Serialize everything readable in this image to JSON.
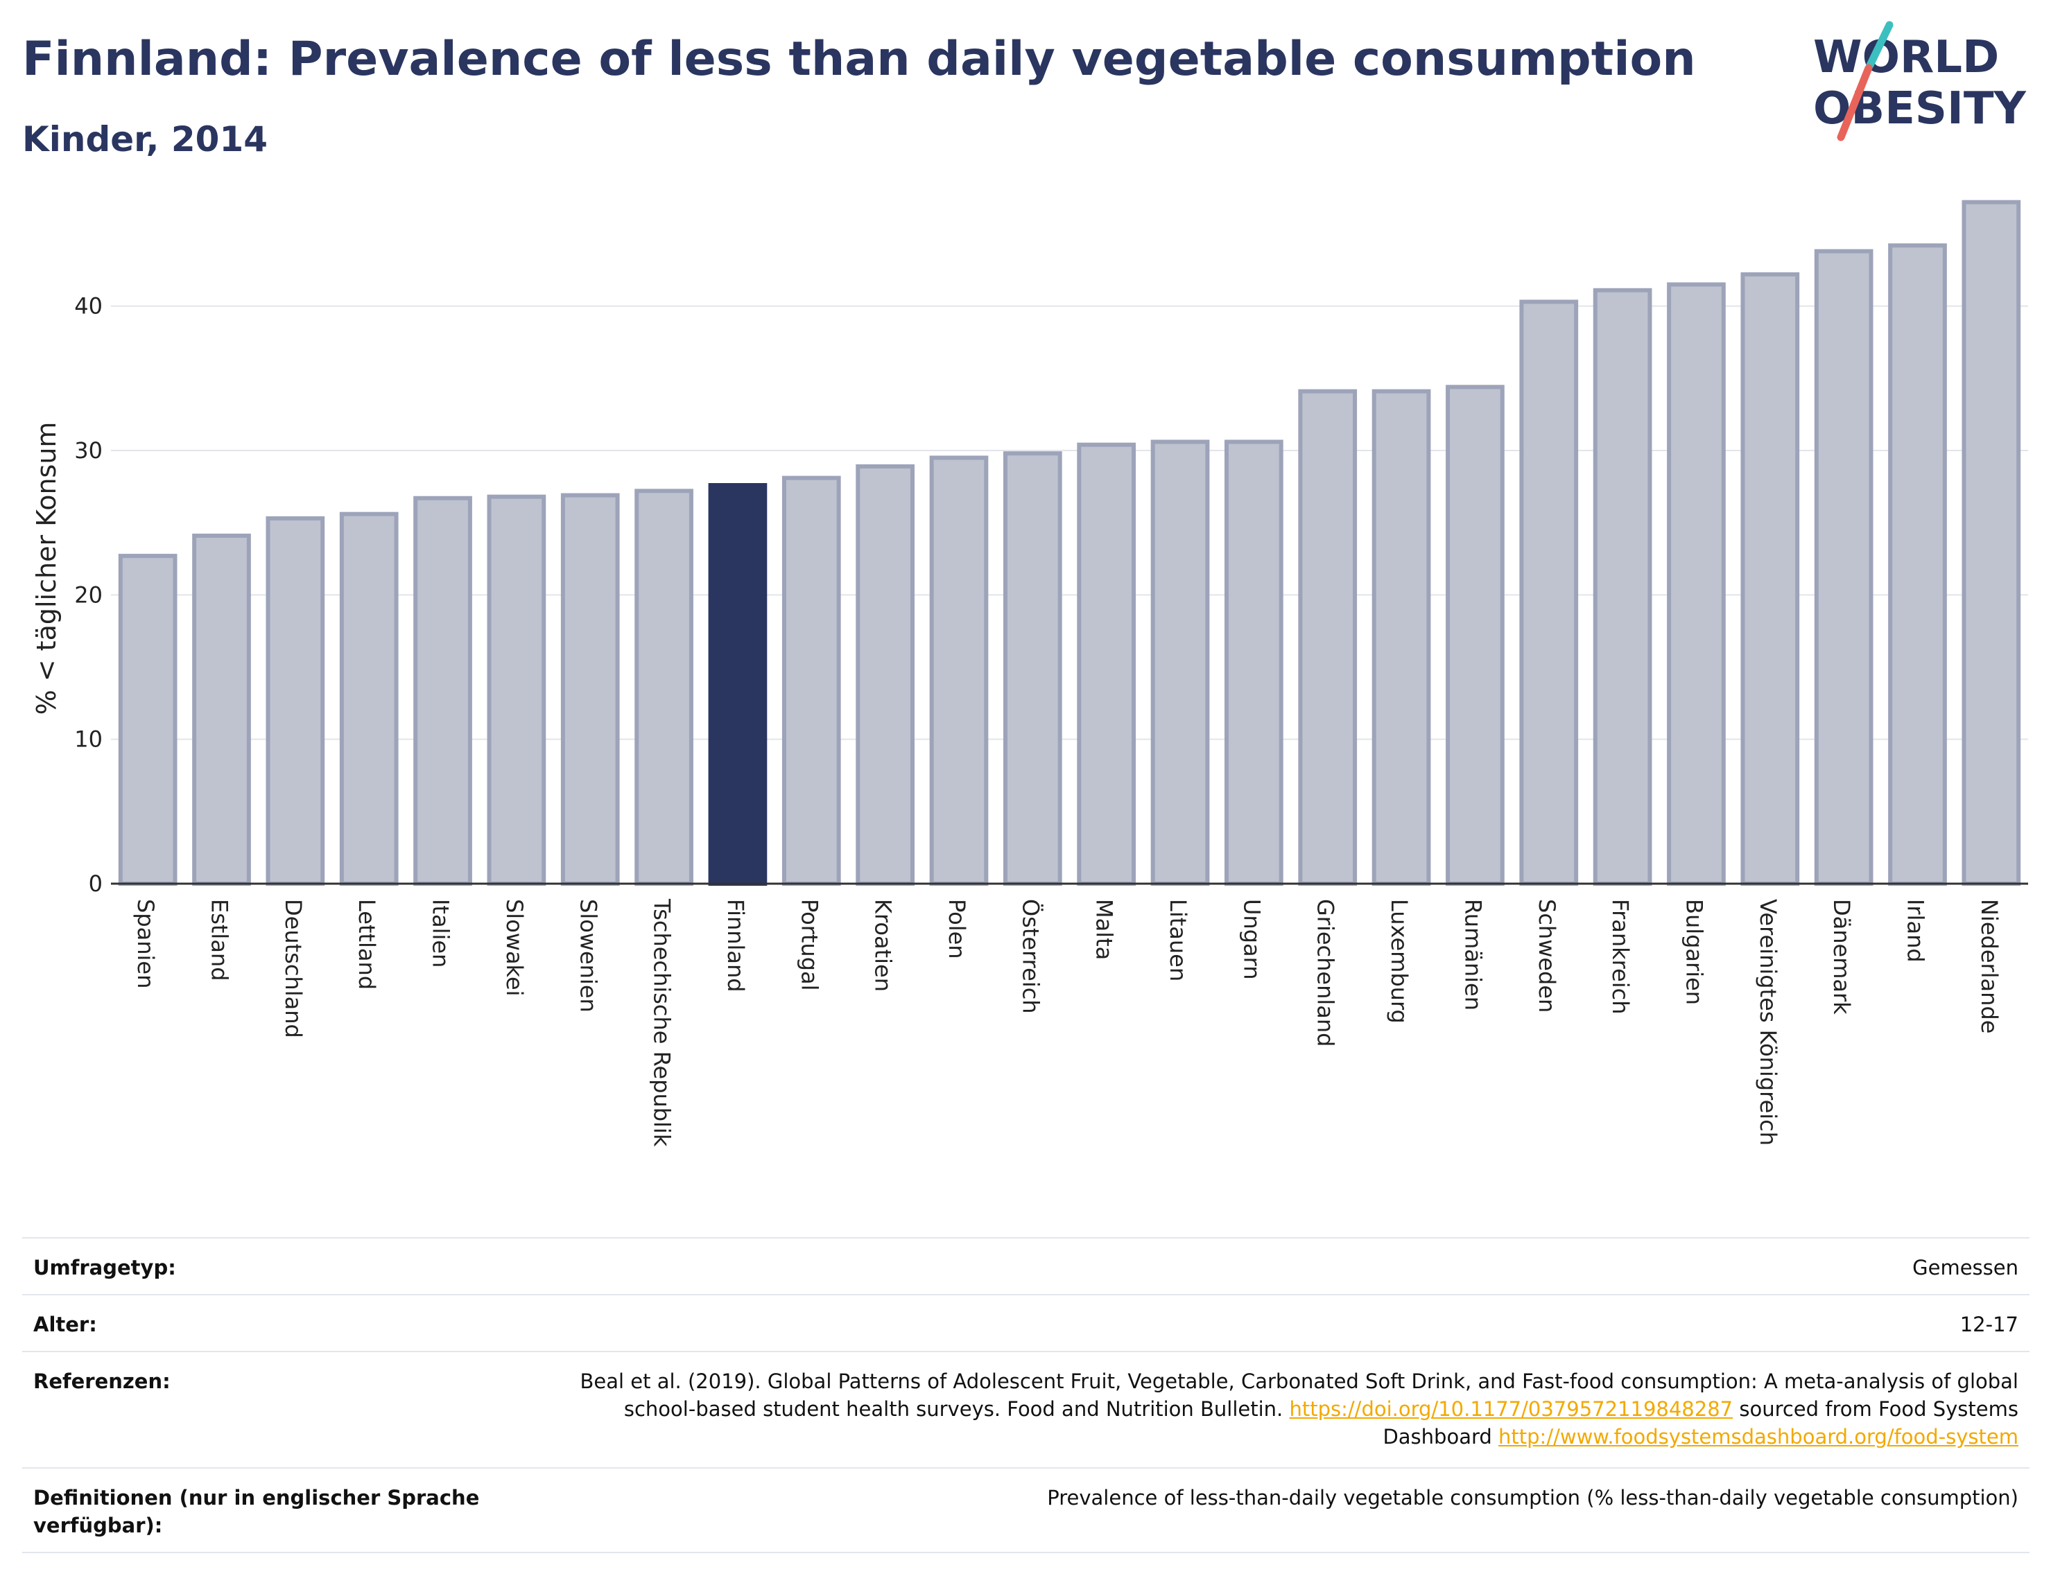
{
  "header": {
    "title": "Finnland: Prevalence of less than daily vegetable consumption",
    "subtitle": "Kinder, 2014"
  },
  "logo": {
    "line1": "WORLD",
    "line2": "OBESITY"
  },
  "chart_data": {
    "type": "bar",
    "title": "Finnland: Prevalence of less than daily vegetable consumption",
    "subtitle": "Kinder, 2014",
    "ylabel": "% < täglicher Konsum",
    "xlabel": "",
    "ylim": [
      0,
      48
    ],
    "yticks": [
      0,
      10,
      20,
      30,
      40
    ],
    "grid": true,
    "highlight": "Finnland",
    "colors": {
      "bar": "#bfc3d0",
      "bar_edge": "#9da3b9",
      "highlight": "#2a3560"
    },
    "categories": [
      "Spanien",
      "Estland",
      "Deutschland",
      "Lettland",
      "Italien",
      "Slowakei",
      "Slowenien",
      "Tschechische Republik",
      "Finnland",
      "Portugal",
      "Kroatien",
      "Polen",
      "Österreich",
      "Malta",
      "Litauen",
      "Ungarn",
      "Griechenland",
      "Luxemburg",
      "Rumänien",
      "Schweden",
      "Frankreich",
      "Bulgarien",
      "Vereinigtes Königreich",
      "Dänemark",
      "Irland",
      "Niederlande"
    ],
    "values": [
      22.7,
      24.1,
      25.3,
      25.6,
      26.7,
      26.8,
      26.9,
      27.2,
      27.6,
      28.1,
      28.9,
      29.5,
      29.8,
      30.4,
      30.6,
      30.6,
      34.1,
      34.1,
      34.4,
      40.3,
      41.1,
      41.5,
      42.2,
      43.8,
      44.2,
      47.2
    ]
  },
  "info_table": {
    "survey_type_label": "Umfragetyp:",
    "survey_type_value": "Gemessen",
    "age_label": "Alter:",
    "age_value": "12-17",
    "references_label": "Referenzen:",
    "references_text_1": "Beal et al. (2019). Global Patterns of Adolescent Fruit, Vegetable, Carbonated Soft Drink, and Fast-food consumption: A meta-analysis of global school-based student health surveys. Food and Nutrition Bulletin. ",
    "references_link_1": "https://doi.org/10.1177/0379572119848287",
    "references_text_2": " sourced from Food Systems Dashboard ",
    "references_link_2": "http://www.foodsystemsdashboard.org/food-system",
    "definitions_label": "Definitionen (nur in englischer Sprache verfügbar):",
    "definitions_value": "Prevalence of less-than-daily vegetable consumption (% less-than-daily vegetable consumption)"
  }
}
